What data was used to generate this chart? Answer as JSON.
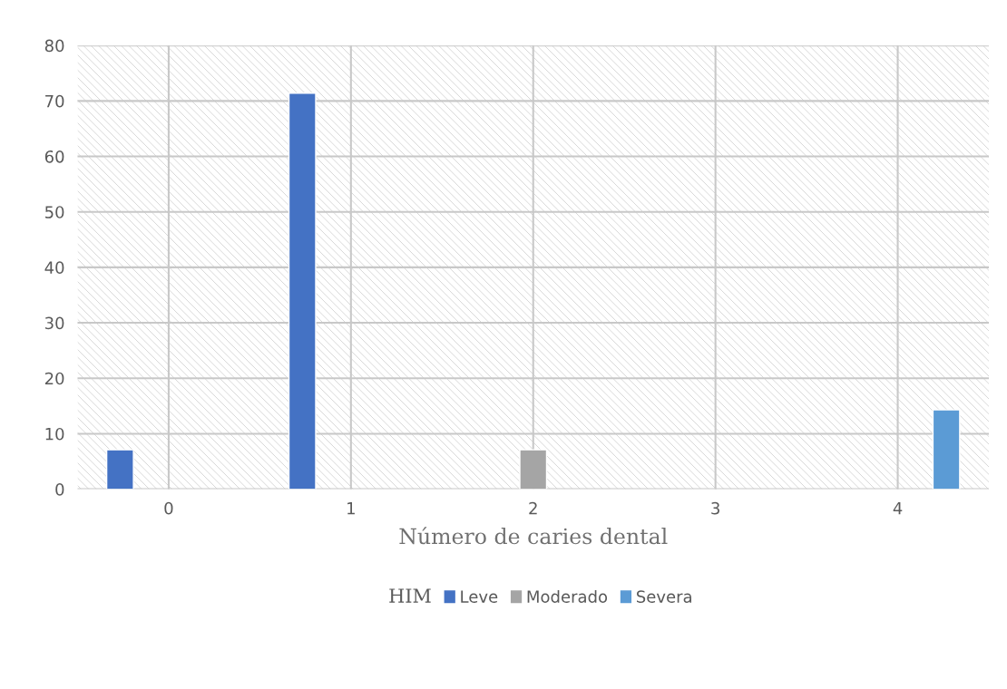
{
  "chart_data": {
    "type": "bar",
    "categories": [
      "0",
      "1",
      "2",
      "3",
      "4"
    ],
    "xlabel": "Número de caries dental",
    "legend_title": "HIM",
    "series": [
      {
        "name": "Leve",
        "color": "#4472c4",
        "values": [
          7.1,
          71.4,
          null,
          null,
          null
        ]
      },
      {
        "name": "Moderado",
        "color": "#a5a5a5",
        "values": [
          null,
          null,
          7.1,
          null,
          null
        ]
      },
      {
        "name": "Severa",
        "color": "#5b9bd5",
        "values": [
          null,
          null,
          null,
          null,
          14.3
        ]
      }
    ],
    "ylim": [
      0,
      80
    ],
    "yticks": [
      0,
      10,
      20,
      30,
      40,
      50,
      60,
      70,
      80
    ],
    "grid": true,
    "legend": "bottom"
  }
}
